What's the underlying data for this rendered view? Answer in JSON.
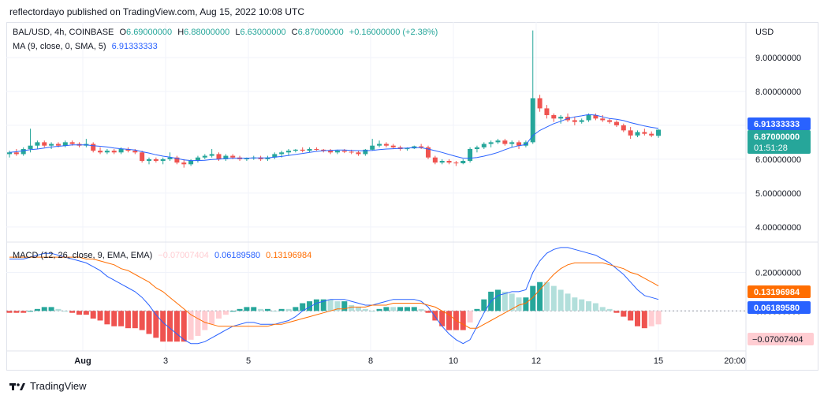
{
  "header": {
    "published": "reflectordayo published on TradingView.com, Aug 15, 2022 10:08 UTC"
  },
  "price_legend": {
    "symbol": "BAL/USD, 4h, COINBASE",
    "o_label": "O",
    "o": "6.69000000",
    "h_label": "H",
    "h": "6.88000000",
    "l_label": "L",
    "l": "6.63000000",
    "c_label": "C",
    "c": "6.87000000",
    "change": "+0.16000000 (+2.38%)"
  },
  "ma_legend": {
    "label": "MA (9, close, 0, SMA, 5)",
    "value": "6.91333333"
  },
  "macd_legend": {
    "label": "MACD (12, 26, close, 9, EMA, EMA)",
    "hist": "−0.07007404",
    "macd": "0.06189580",
    "signal": "0.13196984"
  },
  "price_axis": {
    "currency": "USD",
    "ticks": [
      "9.00000000",
      "8.00000000",
      "7.00000000",
      "6.00000000",
      "5.00000000",
      "4.00000000"
    ],
    "ma_tag": "6.91333333",
    "price_tag": "6.87000000",
    "countdown": "01:51:28"
  },
  "macd_axis": {
    "ticks": [
      "0.20000000",
      "0.00000000"
    ],
    "signal_tag": "0.13196984",
    "macd_tag": "0.06189580",
    "hist_tag": "−0.07007404"
  },
  "time_axis": {
    "labels": [
      "Aug",
      "3",
      "5",
      "8",
      "10",
      "12",
      "15",
      "20:00"
    ]
  },
  "footer": {
    "brand": "TradingView"
  },
  "colors": {
    "up": "#26a69a",
    "down": "#ef5350",
    "ma": "#2962ff",
    "macd": "#2962ff",
    "signal": "#ff6d00",
    "hist_up_strong": "#26a69a",
    "hist_up_weak": "#b2dfdb",
    "hist_down_strong": "#ef5350",
    "hist_down_weak": "#ffcdd2"
  },
  "chart_data": [
    {
      "type": "candlestick",
      "title": "BAL/USD, 4h, COINBASE",
      "ylim": [
        3.6,
        10.0
      ],
      "candles": [
        [
          6.15,
          6.25,
          6.05,
          6.2
        ],
        [
          6.2,
          6.3,
          6.1,
          6.15
        ],
        [
          6.15,
          6.35,
          6.1,
          6.3
        ],
        [
          6.3,
          6.9,
          6.2,
          6.4
        ],
        [
          6.4,
          6.55,
          6.3,
          6.5
        ],
        [
          6.5,
          6.55,
          6.35,
          6.4
        ],
        [
          6.4,
          6.5,
          6.3,
          6.45
        ],
        [
          6.45,
          6.5,
          6.35,
          6.4
        ],
        [
          6.4,
          6.55,
          6.35,
          6.5
        ],
        [
          6.5,
          6.55,
          6.4,
          6.45
        ],
        [
          6.45,
          6.5,
          6.35,
          6.4
        ],
        [
          6.4,
          6.6,
          6.35,
          6.45
        ],
        [
          6.45,
          6.5,
          6.2,
          6.25
        ],
        [
          6.25,
          6.35,
          6.15,
          6.2
        ],
        [
          6.2,
          6.3,
          6.15,
          6.25
        ],
        [
          6.25,
          6.3,
          6.15,
          6.2
        ],
        [
          6.2,
          6.35,
          6.15,
          6.3
        ],
        [
          6.3,
          6.35,
          6.2,
          6.25
        ],
        [
          6.25,
          6.3,
          6.15,
          6.2
        ],
        [
          6.2,
          6.25,
          5.9,
          5.95
        ],
        [
          5.95,
          6.05,
          5.85,
          6.0
        ],
        [
          6.0,
          6.05,
          5.9,
          5.95
        ],
        [
          5.95,
          6.05,
          5.85,
          6.0
        ],
        [
          6.0,
          6.2,
          5.95,
          6.05
        ],
        [
          6.05,
          6.1,
          5.85,
          5.9
        ],
        [
          5.9,
          6.0,
          5.75,
          5.85
        ],
        [
          5.85,
          6.0,
          5.8,
          5.95
        ],
        [
          5.95,
          6.1,
          5.9,
          6.05
        ],
        [
          6.05,
          6.15,
          6.0,
          6.1
        ],
        [
          6.1,
          6.3,
          6.05,
          6.15
        ],
        [
          6.15,
          6.2,
          5.95,
          6.0
        ],
        [
          6.0,
          6.15,
          5.95,
          6.1
        ],
        [
          6.1,
          6.15,
          6.0,
          6.05
        ],
        [
          6.05,
          6.1,
          5.95,
          6.0
        ],
        [
          6.0,
          6.05,
          5.95,
          6.02
        ],
        [
          6.02,
          6.1,
          5.98,
          6.05
        ],
        [
          6.05,
          6.1,
          5.95,
          6.0
        ],
        [
          6.0,
          6.1,
          5.95,
          6.05
        ],
        [
          6.05,
          6.2,
          6.0,
          6.15
        ],
        [
          6.15,
          6.25,
          6.05,
          6.2
        ],
        [
          6.2,
          6.3,
          6.1,
          6.25
        ],
        [
          6.25,
          6.3,
          6.2,
          6.28
        ],
        [
          6.28,
          6.35,
          6.2,
          6.25
        ],
        [
          6.25,
          6.35,
          6.2,
          6.3
        ],
        [
          6.3,
          6.35,
          6.25,
          6.28
        ],
        [
          6.28,
          6.3,
          6.2,
          6.25
        ],
        [
          6.25,
          6.3,
          6.15,
          6.2
        ],
        [
          6.2,
          6.28,
          6.15,
          6.25
        ],
        [
          6.25,
          6.3,
          6.18,
          6.22
        ],
        [
          6.22,
          6.28,
          6.15,
          6.2
        ],
        [
          6.2,
          6.25,
          6.1,
          6.15
        ],
        [
          6.15,
          6.3,
          6.1,
          6.28
        ],
        [
          6.28,
          6.6,
          6.25,
          6.4
        ],
        [
          6.4,
          6.55,
          6.35,
          6.45
        ],
        [
          6.45,
          6.5,
          6.35,
          6.4
        ],
        [
          6.4,
          6.45,
          6.3,
          6.35
        ],
        [
          6.35,
          6.4,
          6.25,
          6.3
        ],
        [
          6.3,
          6.35,
          6.25,
          6.32
        ],
        [
          6.32,
          6.4,
          6.3,
          6.38
        ],
        [
          6.38,
          6.45,
          6.3,
          6.35
        ],
        [
          6.35,
          6.4,
          6.0,
          6.05
        ],
        [
          6.05,
          6.1,
          5.85,
          5.9
        ],
        [
          5.9,
          6.0,
          5.85,
          5.95
        ],
        [
          5.95,
          6.0,
          5.85,
          5.9
        ],
        [
          5.9,
          5.95,
          5.8,
          5.88
        ],
        [
          5.88,
          6.0,
          5.85,
          5.95
        ],
        [
          5.95,
          6.35,
          5.9,
          6.3
        ],
        [
          6.3,
          6.4,
          6.2,
          6.35
        ],
        [
          6.35,
          6.5,
          6.3,
          6.45
        ],
        [
          6.45,
          6.55,
          6.35,
          6.5
        ],
        [
          6.5,
          6.6,
          6.45,
          6.55
        ],
        [
          6.55,
          6.6,
          6.4,
          6.45
        ],
        [
          6.45,
          6.55,
          6.35,
          6.5
        ],
        [
          6.5,
          6.55,
          6.3,
          6.4
        ],
        [
          6.4,
          6.55,
          6.35,
          6.5
        ],
        [
          6.5,
          9.8,
          6.45,
          7.8
        ],
        [
          7.8,
          7.9,
          7.4,
          7.5
        ],
        [
          7.5,
          7.6,
          7.2,
          7.3
        ],
        [
          7.3,
          7.35,
          7.1,
          7.2
        ],
        [
          7.2,
          7.3,
          7.05,
          7.25
        ],
        [
          7.25,
          7.35,
          7.1,
          7.15
        ],
        [
          7.15,
          7.25,
          7.0,
          7.1
        ],
        [
          7.1,
          7.2,
          7.05,
          7.15
        ],
        [
          7.15,
          7.35,
          7.1,
          7.3
        ],
        [
          7.3,
          7.35,
          7.15,
          7.2
        ],
        [
          7.2,
          7.3,
          7.1,
          7.15
        ],
        [
          7.15,
          7.2,
          7.05,
          7.1
        ],
        [
          7.1,
          7.15,
          6.95,
          7.0
        ],
        [
          7.0,
          7.05,
          6.8,
          6.85
        ],
        [
          6.85,
          6.95,
          6.6,
          6.7
        ],
        [
          6.7,
          6.85,
          6.65,
          6.8
        ],
        [
          6.8,
          6.9,
          6.7,
          6.75
        ],
        [
          6.75,
          6.82,
          6.65,
          6.7
        ],
        [
          6.69,
          6.88,
          6.63,
          6.87
        ]
      ],
      "ma": [
        6.2,
        6.22,
        6.25,
        6.28,
        6.3,
        6.33,
        6.36,
        6.38,
        6.4,
        6.42,
        6.42,
        6.42,
        6.4,
        6.38,
        6.36,
        6.33,
        6.31,
        6.29,
        6.27,
        6.22,
        6.18,
        6.13,
        6.09,
        6.06,
        6.02,
        5.98,
        5.96,
        5.96,
        5.97,
        5.99,
        6.0,
        6.02,
        6.03,
        6.03,
        6.03,
        6.04,
        6.04,
        6.04,
        6.06,
        6.08,
        6.11,
        6.14,
        6.17,
        6.2,
        6.23,
        6.25,
        6.26,
        6.27,
        6.27,
        6.26,
        6.25,
        6.25,
        6.26,
        6.28,
        6.3,
        6.31,
        6.32,
        6.33,
        6.34,
        6.34,
        6.3,
        6.25,
        6.2,
        6.14,
        6.08,
        6.03,
        6.03,
        6.05,
        6.09,
        6.14,
        6.2,
        6.28,
        6.35,
        6.4,
        6.43,
        6.7,
        6.85,
        6.95,
        7.05,
        7.12,
        7.2,
        7.25,
        7.28,
        7.32,
        7.3,
        7.25,
        7.2,
        7.18,
        7.14,
        7.08,
        7.03,
        6.98,
        6.94,
        6.91
      ]
    },
    {
      "type": "macd",
      "title": "MACD (12, 26, close, 9, EMA, EMA)",
      "ylim": [
        -0.2,
        0.35
      ],
      "macd": [
        0.27,
        0.27,
        0.27,
        0.28,
        0.29,
        0.3,
        0.3,
        0.29,
        0.28,
        0.27,
        0.26,
        0.25,
        0.23,
        0.21,
        0.18,
        0.16,
        0.14,
        0.12,
        0.1,
        0.07,
        0.03,
        -0.02,
        -0.06,
        -0.09,
        -0.12,
        -0.15,
        -0.17,
        -0.17,
        -0.16,
        -0.14,
        -0.12,
        -0.1,
        -0.08,
        -0.07,
        -0.06,
        -0.06,
        -0.07,
        -0.07,
        -0.07,
        -0.06,
        -0.05,
        -0.03,
        0.0,
        0.02,
        0.04,
        0.05,
        0.06,
        0.06,
        0.06,
        0.05,
        0.04,
        0.03,
        0.03,
        0.04,
        0.05,
        0.06,
        0.06,
        0.06,
        0.06,
        0.05,
        0.02,
        -0.03,
        -0.08,
        -0.12,
        -0.15,
        -0.17,
        -0.15,
        -0.08,
        -0.01,
        0.05,
        0.08,
        0.09,
        0.1,
        0.1,
        0.11,
        0.2,
        0.26,
        0.3,
        0.32,
        0.33,
        0.33,
        0.32,
        0.31,
        0.3,
        0.29,
        0.27,
        0.25,
        0.22,
        0.19,
        0.15,
        0.11,
        0.08,
        0.07,
        0.06
      ],
      "signal": [
        0.28,
        0.28,
        0.28,
        0.28,
        0.28,
        0.28,
        0.28,
        0.28,
        0.28,
        0.28,
        0.28,
        0.27,
        0.27,
        0.26,
        0.25,
        0.24,
        0.22,
        0.21,
        0.19,
        0.17,
        0.15,
        0.12,
        0.1,
        0.07,
        0.04,
        0.01,
        -0.02,
        -0.04,
        -0.06,
        -0.07,
        -0.08,
        -0.08,
        -0.08,
        -0.08,
        -0.08,
        -0.08,
        -0.08,
        -0.08,
        -0.07,
        -0.07,
        -0.06,
        -0.05,
        -0.04,
        -0.03,
        -0.02,
        -0.01,
        0.0,
        0.01,
        0.01,
        0.02,
        0.02,
        0.02,
        0.03,
        0.03,
        0.03,
        0.04,
        0.04,
        0.04,
        0.04,
        0.04,
        0.03,
        0.02,
        0.0,
        -0.02,
        -0.05,
        -0.07,
        -0.09,
        -0.09,
        -0.07,
        -0.05,
        -0.03,
        -0.01,
        0.01,
        0.03,
        0.04,
        0.07,
        0.11,
        0.15,
        0.19,
        0.22,
        0.24,
        0.25,
        0.25,
        0.25,
        0.25,
        0.25,
        0.24,
        0.23,
        0.22,
        0.2,
        0.19,
        0.17,
        0.15,
        0.13
      ]
    }
  ]
}
